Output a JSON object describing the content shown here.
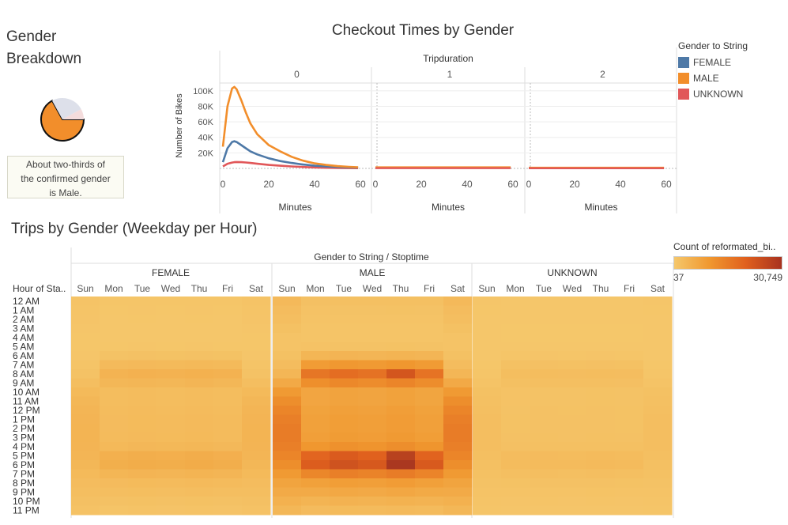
{
  "gender_breakdown": {
    "title_line1": "Gender",
    "title_line2": "Breakdown",
    "note_line1": "About two-thirds of",
    "note_line2": "the confirmed gender",
    "note_line3": "is Male.",
    "pie": [
      {
        "label": "MALE",
        "share": 0.67,
        "color": "#f28e2b"
      },
      {
        "label": "FEMALE",
        "share": 0.25,
        "color": "#dde0ea"
      },
      {
        "label": "UNKNOWN",
        "share": 0.08,
        "color": "#f4dcdc"
      }
    ]
  },
  "legend": {
    "title": "Gender to String",
    "items": [
      {
        "label": "FEMALE",
        "color": "#4e79a7"
      },
      {
        "label": "MALE",
        "color": "#f28e2b"
      },
      {
        "label": "UNKNOWN",
        "color": "#e15759"
      }
    ]
  },
  "heat_legend": {
    "title": "Count of reformated_bi..",
    "min_label": "37",
    "max_label": "30,749"
  },
  "chart_data": [
    {
      "type": "line",
      "title": "Checkout Times by Gender",
      "facet_title": "Tripduration",
      "panels": [
        "0",
        "1",
        "2"
      ],
      "xlabel": "Minutes",
      "ylabel": "Number of Bikes",
      "xlim": [
        0,
        60
      ],
      "ylim": [
        0,
        110000
      ],
      "x_ticks": [
        "0",
        "20",
        "40",
        "60"
      ],
      "y_ticks": [
        "20K",
        "40K",
        "60K",
        "80K",
        "100K"
      ],
      "x": [
        0,
        2,
        4,
        5,
        6,
        8,
        10,
        12,
        15,
        20,
        25,
        30,
        35,
        40,
        45,
        50,
        55,
        59
      ],
      "series": [
        {
          "name": "FEMALE",
          "color": "#4e79a7",
          "panel0": [
            8000,
            26000,
            34000,
            35000,
            34000,
            30000,
            26000,
            22000,
            18000,
            13000,
            9500,
            7000,
            5000,
            3500,
            2500,
            1800,
            1300,
            1000
          ]
        },
        {
          "name": "MALE",
          "color": "#f28e2b",
          "panel0": [
            28000,
            80000,
            103000,
            105000,
            102000,
            88000,
            72000,
            58000,
            44000,
            30000,
            22000,
            15000,
            10000,
            6500,
            4500,
            3000,
            2000,
            1500
          ]
        },
        {
          "name": "UNKNOWN",
          "color": "#e15759",
          "panel0": [
            2500,
            6000,
            7500,
            8000,
            8200,
            8000,
            7600,
            7000,
            6000,
            4500,
            3500,
            2500,
            1800,
            1200,
            800,
            600,
            400,
            300
          ]
        }
      ],
      "panel_tail": [
        {
          "name": "FEMALE",
          "panel1": 1000,
          "panel2": 600
        },
        {
          "name": "MALE",
          "panel1": 1500,
          "panel2": 900
        },
        {
          "name": "UNKNOWN",
          "panel1": 300,
          "panel2": 150
        }
      ]
    },
    {
      "type": "heatmap",
      "title": "Trips by Gender (Weekday per Hour)",
      "column_header": "Gender to String / Stoptime",
      "row_header": "Hour of Sta..",
      "groups": [
        "FEMALE",
        "MALE",
        "UNKNOWN"
      ],
      "days": [
        "Sun",
        "Mon",
        "Tue",
        "Wed",
        "Thu",
        "Fri",
        "Sat"
      ],
      "hours": [
        "12 AM",
        "1 AM",
        "2 AM",
        "3 AM",
        "4 AM",
        "5 AM",
        "6 AM",
        "7 AM",
        "8 AM",
        "9 AM",
        "10 AM",
        "11 AM",
        "12 PM",
        "1 PM",
        "2 PM",
        "3 PM",
        "4 PM",
        "5 PM",
        "6 PM",
        "7 PM",
        "8 PM",
        "9 PM",
        "10 PM",
        "11 PM"
      ],
      "range": [
        37,
        30749
      ],
      "hour_weights": [
        0.07,
        0.05,
        0.04,
        0.03,
        0.03,
        0.05,
        0.18,
        0.45,
        0.7,
        0.55,
        0.35,
        0.35,
        0.38,
        0.4,
        0.4,
        0.42,
        0.5,
        0.8,
        0.85,
        0.6,
        0.4,
        0.3,
        0.2,
        0.12
      ],
      "weekend_weights": [
        0.13,
        0.1,
        0.08,
        0.06,
        0.04,
        0.04,
        0.06,
        0.1,
        0.16,
        0.28,
        0.42,
        0.5,
        0.55,
        0.58,
        0.6,
        0.6,
        0.58,
        0.55,
        0.5,
        0.42,
        0.33,
        0.27,
        0.21,
        0.15
      ],
      "group_scale": {
        "FEMALE": 0.3,
        "MALE": 1.0,
        "UNKNOWN": 0.14
      },
      "day_factor": [
        1.0,
        0.9,
        0.97,
        0.93,
        1.0,
        0.92,
        1.0
      ]
    }
  ]
}
